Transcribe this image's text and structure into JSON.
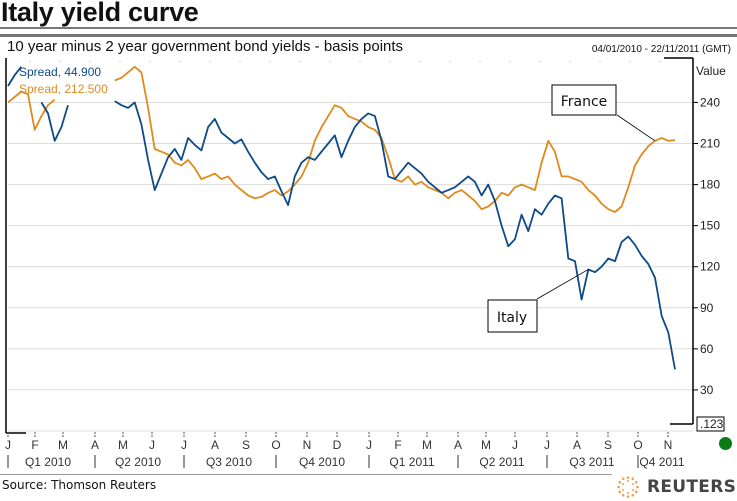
{
  "header": {
    "title": "Italy yield curve",
    "subtitle": "10 year minus 2 year government bond yields - basis points",
    "date_range": "04/01/2010 - 22/11/2011 (GMT)"
  },
  "footer": {
    "source": "Source: Thomson Reuters",
    "brand": "REUTERS"
  },
  "status": {
    "indicator_color": "#0a7a16",
    "cursor_value": ".123"
  },
  "chart_data": {
    "type": "line",
    "title": "Italy yield curve",
    "subtitle": "10 year minus 2 year government bond yields - basis points",
    "ylabel": "Value",
    "xlabel": "",
    "ylim": [
      0,
      271
    ],
    "yticks": [
      30,
      60,
      90,
      120,
      150,
      180,
      210,
      240
    ],
    "grid": true,
    "y_axis_side": "right",
    "x_range": [
      "2010-01-04",
      "2011-11-22"
    ],
    "month_labels": [
      "J",
      "F",
      "M",
      "A",
      "M",
      "J",
      "J",
      "A",
      "S",
      "O",
      "N",
      "D",
      "J",
      "F",
      "M",
      "A",
      "M",
      "J",
      "J",
      "A",
      "S",
      "O",
      "N"
    ],
    "quarter_labels": [
      "Q1 2010",
      "Q2 2010",
      "Q3 2010",
      "Q4 2010",
      "Q1 2011",
      "Q2 2011",
      "Q3 2011",
      "Q4 2011"
    ],
    "legend": [
      {
        "label": "Spread, 44.900",
        "color": "#0d4a87"
      },
      {
        "label": "Spread, 212.500",
        "color": "#e08a1e"
      }
    ],
    "legend_position": "top-left",
    "annotations": [
      {
        "text": "France",
        "series": "France",
        "points_to_week": 97
      },
      {
        "text": "Italy",
        "series": "Italy",
        "points_to_week": 87
      }
    ],
    "series": [
      {
        "name": "Italy",
        "color": "#0d4a87",
        "last_value": 44.9,
        "note": "weekly values starting week of 04/01/2010; null = gap in data",
        "values": [
          252,
          260,
          266,
          null,
          null,
          240,
          232,
          212,
          222,
          238,
          null,
          null,
          null,
          null,
          null,
          null,
          241,
          238,
          236,
          240,
          224,
          198,
          176,
          188,
          200,
          206,
          198,
          214,
          209,
          205,
          222,
          228,
          218,
          214,
          210,
          213,
          204,
          196,
          189,
          184,
          186,
          175,
          165,
          186,
          196,
          200,
          198,
          204,
          210,
          216,
          200,
          212,
          222,
          228,
          232,
          230,
          212,
          186,
          184,
          190,
          196,
          192,
          188,
          182,
          178,
          174,
          176,
          178,
          182,
          186,
          182,
          172,
          180,
          168,
          150,
          135,
          140,
          158,
          146,
          162,
          158,
          166,
          172,
          170,
          126,
          124,
          96,
          118,
          116,
          120,
          126,
          124,
          138,
          142,
          136,
          128,
          122,
          112,
          84,
          72,
          45
        ]
      },
      {
        "name": "France",
        "color": "#e08a1e",
        "last_value": 212.5,
        "note": "weekly values starting week of 04/01/2010",
        "values": [
          240,
          244,
          248,
          246,
          220,
          230,
          238,
          242,
          null,
          null,
          null,
          null,
          null,
          null,
          null,
          null,
          256,
          258,
          262,
          266,
          262,
          236,
          206,
          204,
          202,
          196,
          194,
          198,
          192,
          184,
          186,
          188,
          184,
          186,
          180,
          176,
          172,
          170,
          171,
          174,
          176,
          172,
          175,
          180,
          186,
          196,
          212,
          222,
          230,
          238,
          236,
          230,
          228,
          226,
          222,
          220,
          214,
          200,
          184,
          182,
          186,
          180,
          182,
          178,
          176,
          174,
          170,
          174,
          176,
          172,
          168,
          162,
          164,
          168,
          174,
          172,
          178,
          180,
          178,
          176,
          196,
          212,
          204,
          186,
          186,
          184,
          182,
          176,
          172,
          166,
          162,
          160,
          164,
          178,
          194,
          202,
          208,
          212,
          214,
          212,
          212.5
        ]
      }
    ]
  }
}
